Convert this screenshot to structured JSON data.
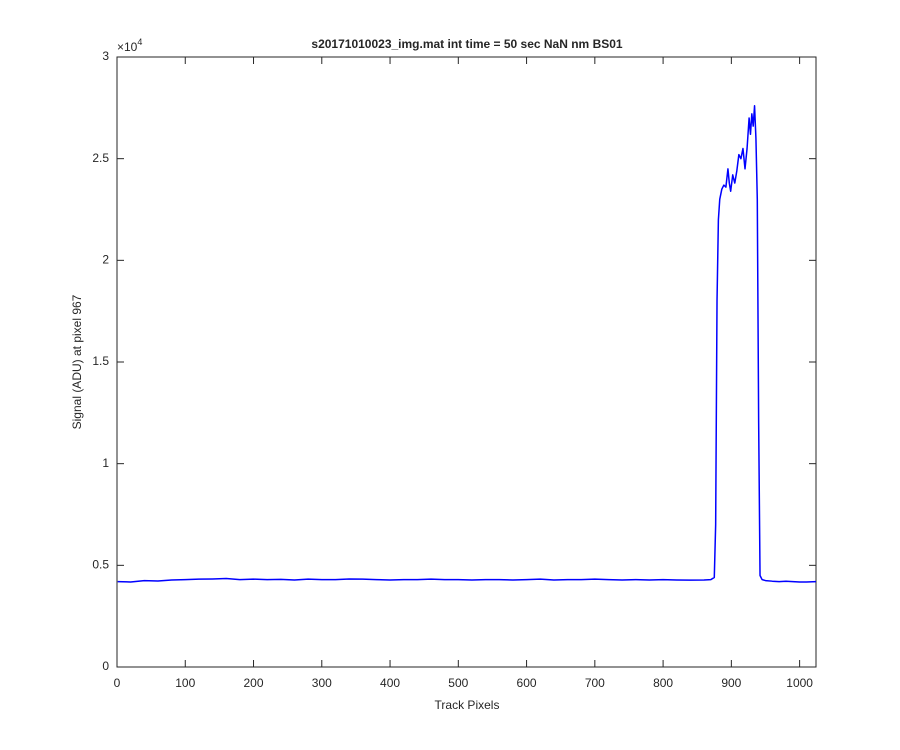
{
  "chart_data": {
    "type": "line",
    "title": "s20171010023_img.mat int time = 50 sec  NaN nm BS01",
    "x_label": "Track Pixels",
    "y_label": "Signal (ADU) at pixel 967",
    "y_scale_label": {
      "base": "×10",
      "exponent": "4"
    },
    "xlim": [
      0,
      1024
    ],
    "ylim": [
      0,
      3
    ],
    "xticks": [
      0,
      100,
      200,
      300,
      400,
      500,
      600,
      700,
      800,
      900,
      1000
    ],
    "yticks": [
      0,
      0.5,
      1,
      1.5,
      2,
      2.5,
      3
    ],
    "grid": false,
    "x": [
      1,
      20,
      40,
      60,
      80,
      100,
      120,
      140,
      160,
      180,
      200,
      220,
      240,
      260,
      280,
      300,
      320,
      340,
      360,
      380,
      400,
      420,
      440,
      460,
      480,
      500,
      520,
      540,
      560,
      580,
      600,
      620,
      640,
      660,
      680,
      700,
      720,
      740,
      760,
      780,
      800,
      820,
      840,
      860,
      870,
      875,
      877,
      879,
      881,
      883,
      886,
      889,
      892,
      895,
      897,
      899,
      902,
      905,
      908,
      911,
      914,
      917,
      920,
      923,
      926,
      928,
      930,
      932,
      934,
      936,
      938,
      940,
      942,
      945,
      950,
      960,
      970,
      980,
      990,
      1000,
      1010,
      1024
    ],
    "series": [
      {
        "color": "#0000ff",
        "values": [
          0.42,
          0.418,
          0.425,
          0.423,
          0.428,
          0.43,
          0.432,
          0.433,
          0.435,
          0.43,
          0.432,
          0.43,
          0.431,
          0.428,
          0.432,
          0.43,
          0.43,
          0.433,
          0.432,
          0.43,
          0.428,
          0.43,
          0.43,
          0.432,
          0.43,
          0.43,
          0.428,
          0.43,
          0.43,
          0.428,
          0.43,
          0.432,
          0.428,
          0.43,
          0.43,
          0.432,
          0.43,
          0.428,
          0.43,
          0.428,
          0.43,
          0.428,
          0.427,
          0.428,
          0.43,
          0.44,
          0.7,
          1.8,
          2.2,
          2.3,
          2.35,
          2.37,
          2.36,
          2.45,
          2.38,
          2.34,
          2.42,
          2.38,
          2.44,
          2.52,
          2.5,
          2.55,
          2.45,
          2.55,
          2.7,
          2.62,
          2.72,
          2.66,
          2.76,
          2.6,
          2.3,
          1.2,
          0.45,
          0.43,
          0.425,
          0.422,
          0.42,
          0.422,
          0.42,
          0.418,
          0.418,
          0.42
        ]
      }
    ]
  }
}
